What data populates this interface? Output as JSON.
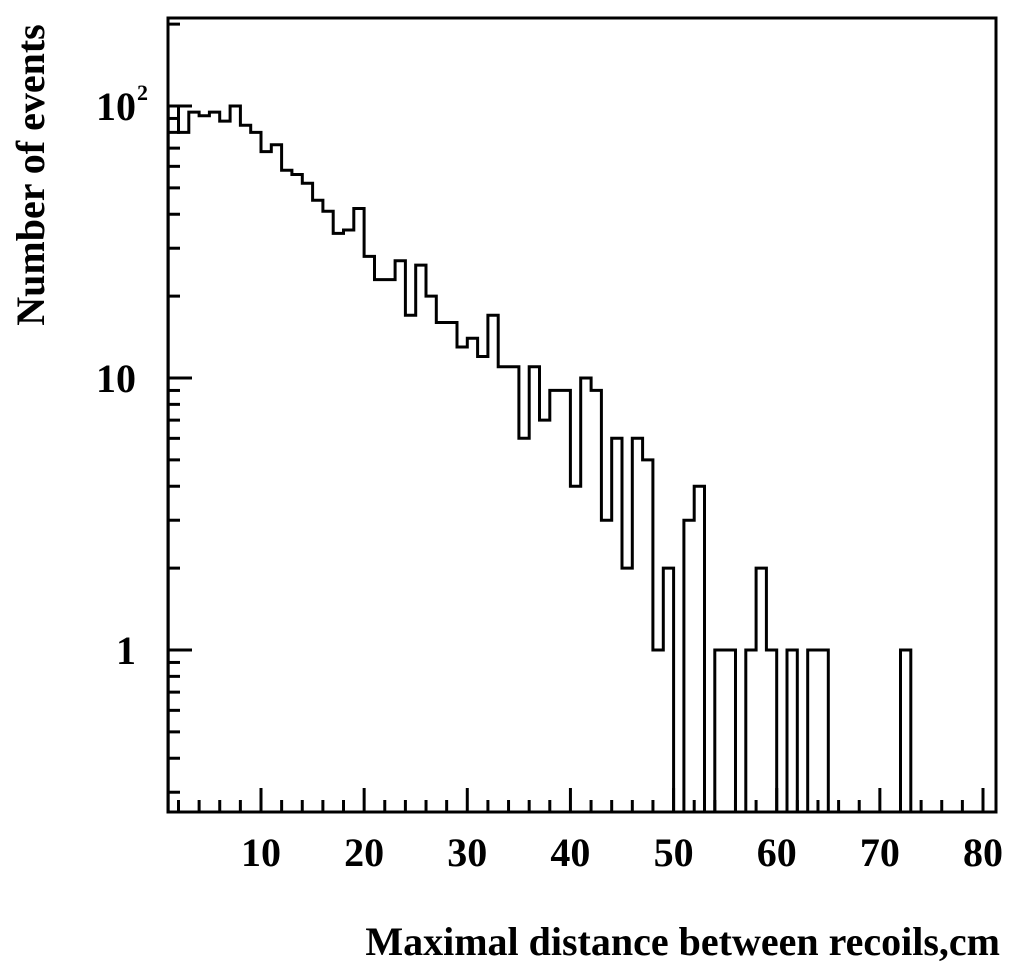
{
  "chart_data": {
    "type": "histogram",
    "xlabel": "Maximal distance between recoils,cm",
    "ylabel": "Number of events",
    "xlim": [
      1,
      80
    ],
    "ylim": [
      0.28,
      200
    ],
    "y_scale": "log",
    "grid": false,
    "x_ticks": [
      10,
      20,
      30,
      40,
      50,
      60,
      70,
      80
    ],
    "x_tick_labels": [
      "10",
      "20",
      "30",
      "40",
      "50",
      "60",
      "70",
      "80"
    ],
    "y_ticks": [
      1,
      10,
      100
    ],
    "y_tick_labels": [
      {
        "base": "1",
        "exp": ""
      },
      {
        "base": "10",
        "exp": ""
      },
      {
        "base": "10",
        "exp": "2"
      }
    ],
    "bin_width": 1,
    "bin_edges_start": 0,
    "counts": [
      0,
      100,
      80,
      95,
      92,
      95,
      88,
      100,
      85,
      80,
      68,
      72,
      58,
      56,
      52,
      45,
      41,
      34,
      35,
      42,
      28,
      23,
      23,
      27,
      17,
      26,
      20,
      16,
      16,
      13,
      14,
      12,
      17,
      11,
      11,
      6,
      11,
      7,
      9,
      9,
      4,
      10,
      9,
      3,
      6,
      2,
      6,
      5,
      1,
      2,
      0,
      3,
      4,
      0,
      1,
      1,
      0,
      1,
      2,
      1,
      0,
      1,
      0,
      1,
      1,
      0,
      0,
      0,
      0,
      0,
      0,
      0,
      1,
      0,
      0,
      0,
      0,
      0,
      0,
      0
    ]
  }
}
